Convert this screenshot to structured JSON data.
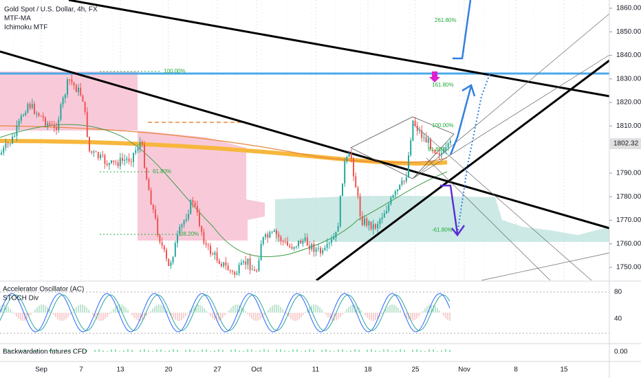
{
  "header": {
    "title": "Gold Spot / U.S. Dollar, 4h, FX",
    "indicators": [
      "MTF-MA",
      "Ichimoku MTF"
    ]
  },
  "price_axis": {
    "ticks": [
      {
        "value": 1860,
        "label": "1860.00"
      },
      {
        "value": 1850,
        "label": "1850.00"
      },
      {
        "value": 1840,
        "label": "1840.00"
      },
      {
        "value": 1830,
        "label": "1830.00"
      },
      {
        "value": 1820,
        "label": "1820.00"
      },
      {
        "value": 1810,
        "label": "1810.00"
      },
      {
        "value": 1790,
        "label": "1790.00"
      },
      {
        "value": 1780,
        "label": "1780.00"
      },
      {
        "value": 1770,
        "label": "1770.00"
      },
      {
        "value": 1760,
        "label": "1760.00"
      },
      {
        "value": 1750,
        "label": "1750.00"
      }
    ],
    "current_price": "1802.32"
  },
  "fib_labels": [
    "261.80%",
    "161.80%",
    "100.00%",
    "61.80%",
    "-61.80%",
    "100.00%",
    "61.80%",
    "38.20%"
  ],
  "oscillator_pane": {
    "labels": [
      "Accelerator Oscillator (AC)",
      "STOCH Div"
    ],
    "ticks": [
      "80",
      "40"
    ]
  },
  "backwardation_pane": {
    "label": "Backwardation futures CFD",
    "tick": "0.00"
  },
  "time_axis": [
    "Sep",
    "7",
    "13",
    "20",
    "27",
    "Oct",
    "11",
    "18",
    "25",
    "Nov",
    "8",
    "15"
  ]
}
